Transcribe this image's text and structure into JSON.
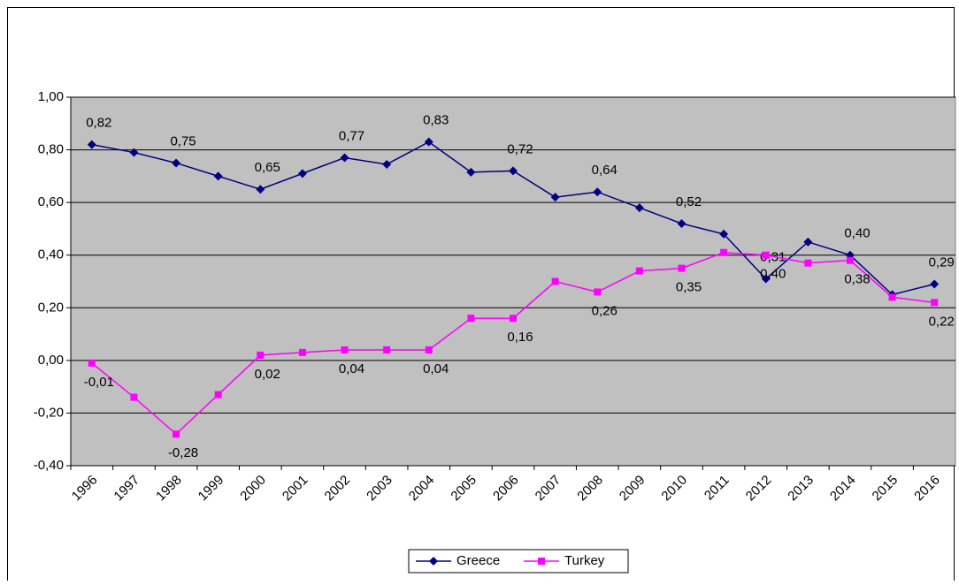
{
  "chart_data": {
    "type": "line",
    "categories": [
      "1996",
      "1997",
      "1998",
      "1999",
      "2000",
      "2001",
      "2002",
      "2003",
      "2004",
      "2005",
      "2006",
      "2007",
      "2008",
      "2009",
      "2010",
      "2011",
      "2012",
      "2013",
      "2014",
      "2015",
      "2016"
    ],
    "series": [
      {
        "name": "Greece",
        "color": "#000080",
        "marker": "diamond",
        "values": [
          0.82,
          0.79,
          0.75,
          0.7,
          0.65,
          0.71,
          0.77,
          0.745,
          0.83,
          0.715,
          0.72,
          0.62,
          0.64,
          0.58,
          0.52,
          0.48,
          0.31,
          0.45,
          0.4,
          0.25,
          0.29
        ],
        "value_labels": [
          "0,82",
          null,
          "0,75",
          null,
          "0,65",
          null,
          "0,77",
          null,
          "0,83",
          null,
          "0,72",
          null,
          "0,64",
          null,
          "0,52",
          null,
          "0,31",
          null,
          "0,40",
          null,
          "0,29"
        ]
      },
      {
        "name": "Turkey",
        "color": "#ff00ff",
        "marker": "square",
        "values": [
          -0.01,
          -0.14,
          -0.28,
          -0.13,
          0.02,
          0.03,
          0.04,
          0.04,
          0.04,
          0.16,
          0.16,
          0.3,
          0.26,
          0.34,
          0.35,
          0.41,
          0.4,
          0.37,
          0.38,
          0.24,
          0.22
        ],
        "value_labels": [
          "-0,01",
          null,
          "-0,28",
          null,
          "0,02",
          null,
          "0,04",
          null,
          "0,04",
          null,
          "0,16",
          null,
          "0,26",
          null,
          "0,35",
          null,
          "0,40",
          null,
          "0,38",
          null,
          "0,22"
        ]
      }
    ],
    "ylim": [
      -0.4,
      1.0
    ],
    "yticks": [
      {
        "value": -0.4,
        "label": "-0,40"
      },
      {
        "value": -0.2,
        "label": "-0,20"
      },
      {
        "value": 0,
        "label": "0,00"
      },
      {
        "value": 0.2,
        "label": "0,20"
      },
      {
        "value": 0.4,
        "label": "0,40"
      },
      {
        "value": 0.6,
        "label": "0,60"
      },
      {
        "value": 0.8,
        "label": "0,80"
      },
      {
        "value": 1.0,
        "label": "1,00"
      }
    ],
    "grid": true,
    "plot_background": "#c0c0c0",
    "legend": "bottom"
  }
}
